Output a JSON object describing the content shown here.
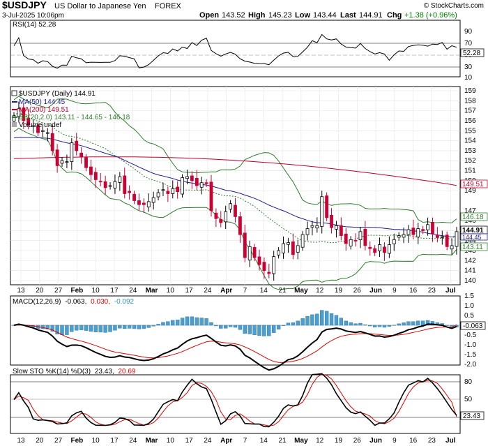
{
  "header": {
    "symbol": "$USDJPY",
    "name": "US Dollar to Japanese Yen",
    "exchange": "FOREX",
    "brand": "© StockCharts.com",
    "datetime": "3-Jul-2025 10:06pm",
    "open_label": "Open",
    "open": "143.52",
    "high_label": "High",
    "high": "145.23",
    "low_label": "Low",
    "low": "143.44",
    "last_label": "Last",
    "last": "144.91",
    "chg_label": "Chg",
    "chg": "+1.38 (+0.96%)",
    "chg_color": "#008000"
  },
  "rsi_panel": {
    "legend": "RSI(14) 52.28",
    "value_badge": "52.28",
    "axis_ticks": [
      "90",
      "70",
      "50",
      "30",
      "10"
    ]
  },
  "price_panel": {
    "legend_main": "$USDJPY (Daily) 144.91",
    "legend_ma50": "MA(50) 144.45",
    "legend_ma200": "MA(200) 149.51",
    "legend_bb": "BB(20,2.0) 143.11 - 144.65 - 146.18",
    "legend_volume": "Volume undef",
    "badge_last": "144.91",
    "badge_ma50": "144.45",
    "badge_ma200": "149.51",
    "badge_bb_upper": "146.18",
    "badge_bb_lower": "143.11",
    "axis_ticks": [
      "159",
      "158",
      "157",
      "156",
      "155",
      "154",
      "153",
      "152",
      "151",
      "150",
      "149",
      "147",
      "146",
      "145",
      "144",
      "143",
      "142",
      "141",
      "140"
    ],
    "colors": {
      "up": "#000000",
      "down": "#cc0033",
      "ma50": "#1e1e8c",
      "ma200": "#c0002a",
      "bb": "#2d7d2d",
      "bb_mid": "#2d7d2d"
    }
  },
  "date_axis": [
    "13",
    "20",
    "27",
    "Feb",
    "10",
    "17",
    "24",
    "Mar",
    "10",
    "17",
    "24",
    "Apr",
    "7",
    "14",
    "21",
    "May",
    "12",
    "19",
    "26",
    "Jun",
    "9",
    "16",
    "23",
    "Jul"
  ],
  "macd_panel": {
    "legend_prefix": "MACD(12,26,9)",
    "legend_macd": "-0.063,",
    "legend_signal": "0.030,",
    "legend_hist": "-0.092",
    "value_badge": "-0.063",
    "axis_ticks": [
      "1.5",
      "1.0",
      "0.5",
      "0.0",
      "-0.5",
      "-1.0",
      "-1.5",
      "-2.0"
    ]
  },
  "sto_panel": {
    "legend_prefix": "Slow STO %K(14) %D(3)",
    "legend_k": "23.43,",
    "legend_d": "20.69",
    "value_badge": "23.43",
    "axis_ticks": [
      "80",
      "50",
      "20"
    ]
  },
  "chart_data": {
    "type": "candlestick",
    "title": "$USDJPY (Daily) 144.91",
    "x_labels": [
      "13",
      "20",
      "27",
      "Feb",
      "10",
      "17",
      "24",
      "Mar",
      "10",
      "17",
      "24",
      "Apr",
      "7",
      "14",
      "21",
      "May",
      "12",
      "19",
      "26",
      "Jun",
      "9",
      "16",
      "23",
      "Jul"
    ],
    "close_approx": [
      156.5,
      157.2,
      156.0,
      155.6,
      155.5,
      154.8,
      155.0,
      154.8,
      153.0,
      151.5,
      152.0,
      151.9,
      153.8,
      153.0,
      152.4,
      151.3,
      150.6,
      150.1,
      149.9,
      149.3,
      149.5,
      149.9,
      150.4,
      148.7,
      148.8,
      148.0,
      147.6,
      147.6,
      147.9,
      148.3,
      148.8,
      149.1,
      148.7,
      149.2,
      148.9,
      150.3,
      150.4,
      150.0,
      149.5,
      149.8,
      149.7,
      147.0,
      146.2,
      145.8,
      146.9,
      147.7,
      146.4,
      144.6,
      142.3,
      143.4,
      142.3,
      141.6,
      141.0,
      140.7,
      142.4,
      143.0,
      143.7,
      143.8,
      142.6,
      143.5,
      144.6,
      145.2,
      145.5,
      145.5,
      148.4,
      146.3,
      145.3,
      145.5,
      144.5,
      143.7,
      144.1,
      144.0,
      144.9,
      143.5,
      143.2,
      142.8,
      143.6,
      142.8,
      143.6,
      144.1,
      144.5,
      144.6,
      145.1,
      144.6,
      145.2,
      145.0,
      145.6,
      144.7,
      144.3,
      144.4,
      143.4,
      143.5,
      144.9
    ],
    "ma50": {
      "start": 154.3,
      "end": 144.45
    },
    "ma200": {
      "end": 149.51
    },
    "bollinger": {
      "upper": 146.18,
      "middle": 144.65,
      "lower": 143.11
    },
    "rsi14": 52.28,
    "macd": {
      "macd": -0.063,
      "signal": 0.03,
      "histogram": -0.092
    },
    "slow_sto": {
      "k": 23.43,
      "d": 20.69
    }
  }
}
